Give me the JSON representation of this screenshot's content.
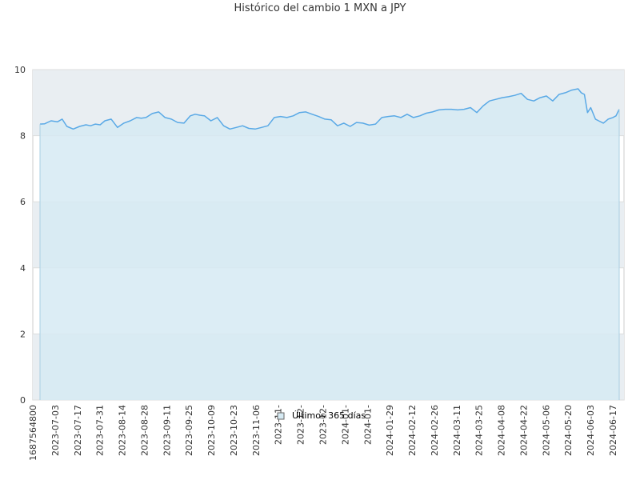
{
  "chart_data": {
    "type": "area",
    "title": "Histórico del cambio 1 MXN a JPY",
    "xlabel": "",
    "ylabel": "",
    "ylim": [
      0,
      10
    ],
    "y_ticks": [
      0,
      2,
      4,
      6,
      8,
      10
    ],
    "grid": true,
    "legend_position": "bottom-center",
    "x_ticks": [
      "1687564800",
      "2023-07-03",
      "2023-07-17",
      "2023-07-31",
      "2023-08-14",
      "2023-08-28",
      "2023-09-11",
      "2023-09-25",
      "2023-10-09",
      "2023-10-23",
      "2023-11-06",
      "2023-11-",
      "2023-12-",
      "2023-12-",
      "2024-01-",
      "2024-01-",
      "2024-01-29",
      "2024-02-12",
      "2024-02-26",
      "2024-03-11",
      "2024-03-25",
      "2024-04-08",
      "2024-04-22",
      "2024-05-06",
      "2024-05-20",
      "2024-06-03",
      "2024-06-17"
    ],
    "series": [
      {
        "name": "Últimos 365 días",
        "x": [
          "2023-06-24",
          "2023-06-27",
          "2023-07-01",
          "2023-07-05",
          "2023-07-08",
          "2023-07-11",
          "2023-07-15",
          "2023-07-19",
          "2023-07-23",
          "2023-07-26",
          "2023-07-29",
          "2023-08-01",
          "2023-08-04",
          "2023-08-08",
          "2023-08-12",
          "2023-08-16",
          "2023-08-20",
          "2023-08-24",
          "2023-08-27",
          "2023-08-30",
          "2023-09-03",
          "2023-09-07",
          "2023-09-11",
          "2023-09-15",
          "2023-09-19",
          "2023-09-23",
          "2023-09-27",
          "2023-09-30",
          "2023-10-03",
          "2023-10-06",
          "2023-10-10",
          "2023-10-14",
          "2023-10-18",
          "2023-10-22",
          "2023-10-26",
          "2023-10-30",
          "2023-11-03",
          "2023-11-07",
          "2023-11-11",
          "2023-11-15",
          "2023-11-19",
          "2023-11-23",
          "2023-11-27",
          "2023-12-01",
          "2023-12-05",
          "2023-12-09",
          "2023-12-13",
          "2023-12-17",
          "2023-12-21",
          "2023-12-25",
          "2023-12-29",
          "2024-01-02",
          "2024-01-06",
          "2024-01-10",
          "2024-01-14",
          "2024-01-18",
          "2024-01-22",
          "2024-01-26",
          "2024-01-30",
          "2024-02-03",
          "2024-02-07",
          "2024-02-11",
          "2024-02-15",
          "2024-02-19",
          "2024-02-23",
          "2024-02-27",
          "2024-03-02",
          "2024-03-06",
          "2024-03-10",
          "2024-03-14",
          "2024-03-18",
          "2024-03-22",
          "2024-03-26",
          "2024-03-30",
          "2024-04-03",
          "2024-04-07",
          "2024-04-11",
          "2024-04-15",
          "2024-04-19",
          "2024-04-23",
          "2024-04-27",
          "2024-05-01",
          "2024-05-05",
          "2024-05-09",
          "2024-05-13",
          "2024-05-17",
          "2024-05-21",
          "2024-05-25",
          "2024-05-29",
          "2024-05-31",
          "2024-06-02",
          "2024-06-04",
          "2024-06-06",
          "2024-06-09",
          "2024-06-11",
          "2024-06-14",
          "2024-06-17",
          "2024-06-20",
          "2024-06-22",
          "2024-06-24"
        ],
        "values": [
          8.35,
          8.36,
          8.45,
          8.42,
          8.5,
          8.28,
          8.2,
          8.28,
          8.33,
          8.3,
          8.35,
          8.33,
          8.45,
          8.5,
          8.25,
          8.38,
          8.45,
          8.55,
          8.53,
          8.55,
          8.67,
          8.72,
          8.55,
          8.5,
          8.4,
          8.38,
          8.6,
          8.65,
          8.62,
          8.6,
          8.45,
          8.55,
          8.3,
          8.2,
          8.25,
          8.3,
          8.22,
          8.2,
          8.25,
          8.3,
          8.55,
          8.58,
          8.55,
          8.6,
          8.7,
          8.72,
          8.65,
          8.58,
          8.5,
          8.48,
          8.3,
          8.38,
          8.28,
          8.4,
          8.38,
          8.32,
          8.35,
          8.55,
          8.58,
          8.6,
          8.55,
          8.65,
          8.55,
          8.6,
          8.68,
          8.72,
          8.78,
          8.8,
          8.8,
          8.78,
          8.8,
          8.85,
          8.7,
          8.9,
          9.05,
          9.1,
          9.15,
          9.18,
          9.22,
          9.28,
          9.1,
          9.05,
          9.15,
          9.2,
          9.05,
          9.25,
          9.3,
          9.38,
          9.42,
          9.3,
          9.25,
          8.7,
          8.85,
          8.5,
          8.45,
          8.38,
          8.5,
          8.55,
          8.6,
          8.8
        ]
      }
    ],
    "colors": {
      "line": "#5aa9e6",
      "fill": "#d6eaf3",
      "plot_band": "#e9eef2",
      "grid": "#dddddd",
      "axis": "#cccccc"
    }
  }
}
